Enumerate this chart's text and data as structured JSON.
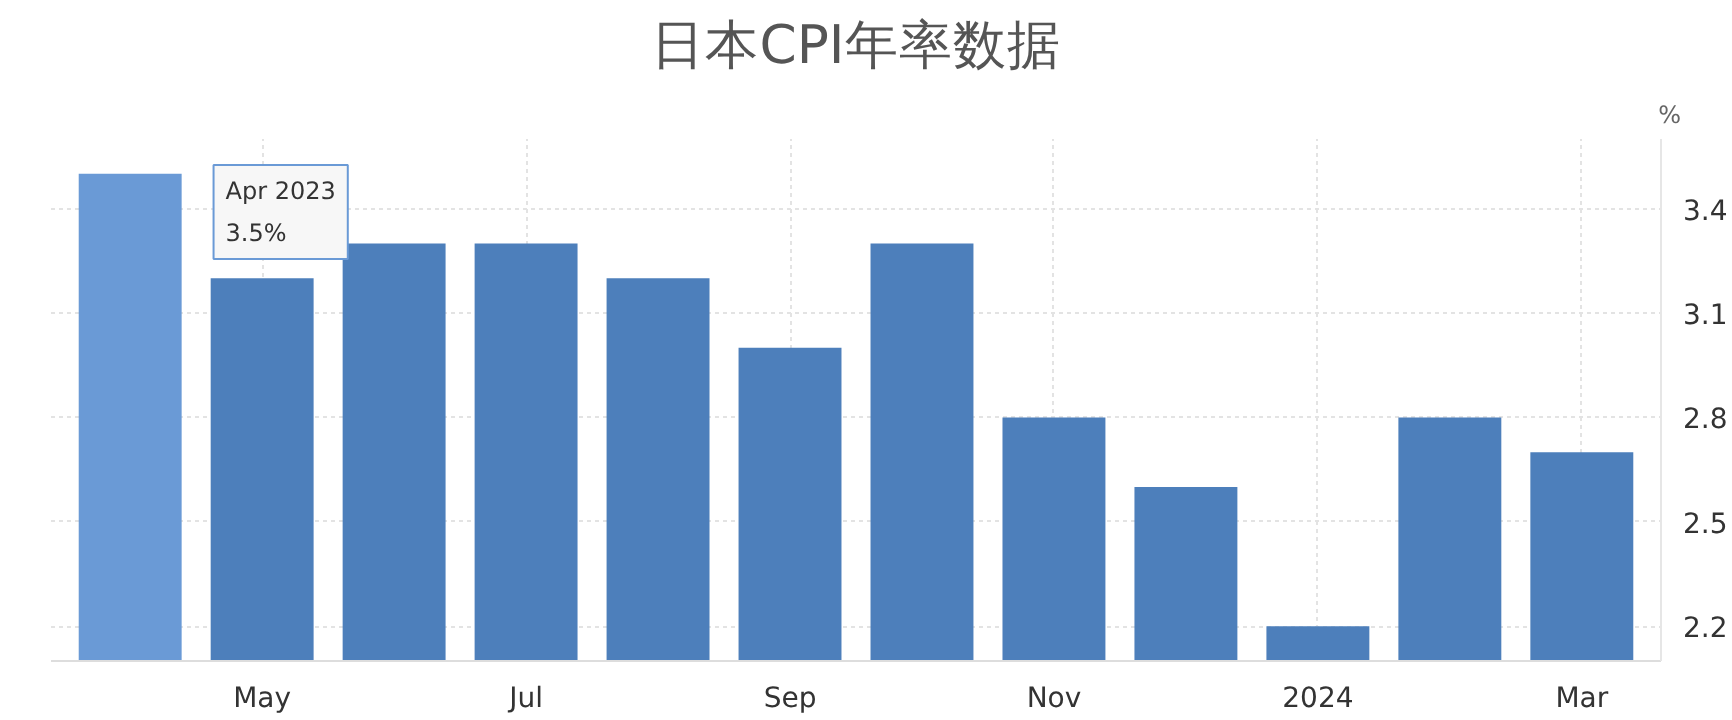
{
  "chart_data": {
    "type": "bar",
    "title": "日本CPI年率数据",
    "ylabel": "%",
    "categories": [
      null,
      "May",
      null,
      "Jul",
      null,
      "Sep",
      null,
      "Nov",
      null,
      "2024",
      null,
      "Mar"
    ],
    "values": [
      3.5,
      3.2,
      3.3,
      3.3,
      3.2,
      3.0,
      3.3,
      2.8,
      2.6,
      2.2,
      2.8,
      2.7
    ],
    "colors": [
      "#6a9ad6",
      "#4d7fbb",
      "#4d7fbb",
      "#4d7fbb",
      "#4d7fbb",
      "#4d7fbb",
      "#4d7fbb",
      "#4d7fbb",
      "#4d7fbb",
      "#4d7fbb",
      "#4d7fbb",
      "#4d7fbb"
    ],
    "ylim": [
      2.1,
      3.6
    ],
    "yticks": [
      2.2,
      2.5,
      2.8,
      3.1,
      3.4
    ],
    "grid": true,
    "annotations": [
      "Apr 2023\n3.5%"
    ]
  }
}
